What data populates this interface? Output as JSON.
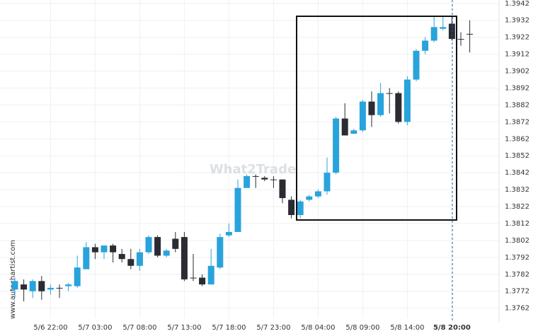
{
  "chart_data": {
    "type": "candlestick",
    "watermark": "What2Trade",
    "source": "www.autochartist.com",
    "categories": [
      null,
      null,
      null,
      null,
      "5/6 22:00",
      null,
      null,
      null,
      null,
      "5/7 03:00",
      null,
      null,
      null,
      null,
      "5/7 08:00",
      null,
      null,
      null,
      null,
      "5/7 13:00",
      null,
      null,
      null,
      null,
      "5/7 18:00",
      null,
      null,
      null,
      null,
      "5/7 23:00",
      null,
      null,
      null,
      null,
      "5/8 04:00",
      null,
      null,
      null,
      null,
      "5/8 09:00",
      null,
      null,
      null,
      null,
      "5/8 14:00",
      null,
      null,
      null,
      null,
      "5/8 20:00",
      null,
      null
    ],
    "open": [
      1.3773,
      1.3776,
      1.3772,
      1.3778,
      1.3773,
      1.3774,
      1.3775,
      1.3775,
      1.3785,
      1.3798,
      1.3795,
      1.3799,
      1.3794,
      1.3791,
      1.3787,
      1.3795,
      1.3804,
      1.3793,
      1.3803,
      1.3804,
      1.378,
      1.378,
      1.3776,
      1.3786,
      1.3805,
      1.3807,
      1.3833,
      1.384,
      1.3839,
      1.3838,
      1.3838,
      1.3826,
      1.3817,
      1.3826,
      1.3828,
      1.3831,
      1.3842,
      1.3874,
      1.3865,
      1.3867,
      1.3884,
      1.3876,
      1.3889,
      1.3889,
      1.3872,
      1.3897,
      1.3914,
      1.392,
      1.3927,
      1.393,
      1.3921,
      1.3924
    ],
    "high": [
      1.378,
      1.3779,
      1.3779,
      1.3781,
      1.3776,
      1.3776,
      1.3777,
      1.3793,
      1.3801,
      1.38,
      1.3799,
      1.38,
      1.3797,
      1.3797,
      1.3797,
      1.3805,
      1.3805,
      1.3797,
      1.3807,
      1.3807,
      1.3794,
      1.3782,
      1.3797,
      1.3806,
      1.3812,
      1.3838,
      1.3841,
      1.3841,
      1.384,
      1.384,
      1.3838,
      1.3828,
      1.3826,
      1.3829,
      1.3832,
      1.3851,
      1.3875,
      1.3883,
      1.3868,
      1.3885,
      1.389,
      1.3895,
      1.3892,
      1.389,
      1.3899,
      1.3915,
      1.3922,
      1.3934,
      1.3934,
      1.3934,
      1.3925,
      1.3932
    ],
    "low": [
      1.3768,
      1.3766,
      1.3768,
      1.3767,
      1.377,
      1.3768,
      1.3772,
      1.3774,
      1.3785,
      1.3791,
      1.3791,
      1.3789,
      1.3789,
      1.3785,
      1.3784,
      1.3794,
      1.3792,
      1.3792,
      1.3795,
      1.3778,
      1.3778,
      1.3775,
      1.3776,
      1.3785,
      1.3804,
      1.3807,
      1.3833,
      1.3833,
      1.3837,
      1.3833,
      1.3824,
      1.3815,
      1.3815,
      1.3825,
      1.3827,
      1.3829,
      1.3841,
      1.3864,
      1.3865,
      1.3866,
      1.3869,
      1.3875,
      1.3877,
      1.3871,
      1.387,
      1.3896,
      1.3912,
      1.3919,
      1.3926,
      1.392,
      1.3917,
      1.3913
    ],
    "close": [
      1.3778,
      1.3773,
      1.3778,
      1.3772,
      1.3774,
      1.3774,
      1.3776,
      1.3786,
      1.3798,
      1.3795,
      1.3799,
      1.3795,
      1.3791,
      1.3787,
      1.3795,
      1.3804,
      1.3793,
      1.3796,
      1.3797,
      1.3779,
      1.378,
      1.3776,
      1.3787,
      1.3804,
      1.3807,
      1.3833,
      1.384,
      1.384,
      1.3838,
      1.3838,
      1.3827,
      1.3817,
      1.3825,
      1.3828,
      1.3831,
      1.3842,
      1.3874,
      1.3864,
      1.3867,
      1.3884,
      1.3876,
      1.3889,
      1.3889,
      1.3872,
      1.3897,
      1.3914,
      1.392,
      1.3928,
      1.3928,
      1.3921,
      1.3921,
      1.3924
    ],
    "up_color": "#29a3dc",
    "down_color": "#2b2b33",
    "ylim": [
      1.3756,
      1.3944
    ],
    "yticks": [
      1.3762,
      1.3772,
      1.3782,
      1.3792,
      1.3802,
      1.3812,
      1.3822,
      1.3832,
      1.3842,
      1.3852,
      1.3862,
      1.3872,
      1.3882,
      1.3892,
      1.3902,
      1.3912,
      1.3922,
      1.3932,
      1.3942
    ],
    "grid": true
  }
}
